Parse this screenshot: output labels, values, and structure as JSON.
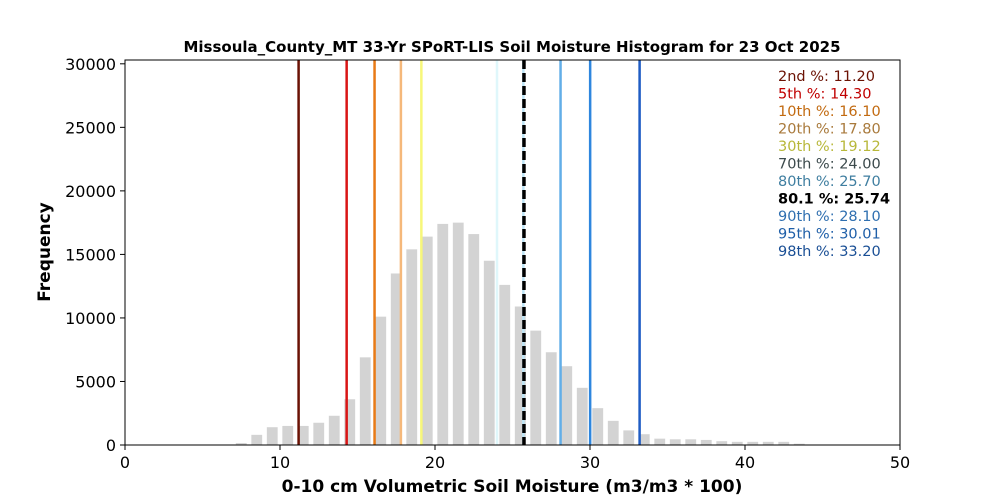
{
  "chart_data": {
    "type": "bar",
    "title": "Missoula_County_MT 33-Yr SPoRT-LIS Soil Moisture Histogram for 23 Oct 2025",
    "xlabel": "0-10 cm Volumetric Soil Moisture (m3/m3 * 100)",
    "ylabel": "Frequency",
    "xlim": [
      0,
      50
    ],
    "ylim": [
      0,
      30300
    ],
    "xticks": [
      0,
      10,
      20,
      30,
      40,
      50
    ],
    "yticks": [
      0,
      5000,
      10000,
      15000,
      20000,
      25000,
      30000
    ],
    "grid": false,
    "bin_centers": [
      7.5,
      8.5,
      9.5,
      10.5,
      11.5,
      12.5,
      13.5,
      14.5,
      15.5,
      16.5,
      17.5,
      18.5,
      19.5,
      20.5,
      21.5,
      22.5,
      23.5,
      24.5,
      25.5,
      26.5,
      27.5,
      28.5,
      29.5,
      30.5,
      31.5,
      32.5,
      33.5,
      34.5,
      35.5,
      36.5,
      37.5,
      38.5,
      39.5,
      40.5,
      41.5,
      42.5,
      43.5
    ],
    "bin_values": [
      150,
      800,
      1400,
      1500,
      1500,
      1750,
      2300,
      3600,
      6900,
      10100,
      13500,
      15400,
      16400,
      17400,
      17500,
      16600,
      14500,
      12600,
      10900,
      9000,
      7300,
      6200,
      4500,
      2900,
      1900,
      1150,
      850,
      500,
      450,
      450,
      400,
      300,
      250,
      250,
      250,
      250,
      100
    ],
    "bar_color": "#d3d3d3",
    "percentile_lines": [
      {
        "label": "2nd %: 11.20",
        "value": 11.2,
        "color": "#6b1204",
        "text_color": "#6b1204",
        "dashed": false
      },
      {
        "label": "5th %: 14.30",
        "value": 14.3,
        "color": "#d91515",
        "text_color": "#c00000",
        "dashed": false
      },
      {
        "label": "10th %: 16.10",
        "value": 16.1,
        "color": "#e87a16",
        "text_color": "#c26a10",
        "dashed": false
      },
      {
        "label": "20th %: 17.80",
        "value": 17.8,
        "color": "#f5b87a",
        "text_color": "#a97a3c",
        "dashed": false
      },
      {
        "label": "30th %: 19.12",
        "value": 19.12,
        "color": "#f7f77a",
        "text_color": "#b8b83a",
        "dashed": false
      },
      {
        "label": "70th %: 24.00",
        "value": 24.0,
        "color": "#dff7fb",
        "text_color": "#3c4a4c",
        "dashed": false
      },
      {
        "label": "80th %: 25.70",
        "value": 25.7,
        "color": "#bfe6f7",
        "text_color": "#3f7ea0",
        "dashed": false
      },
      {
        "label": "80.1 %: 25.74",
        "value": 25.74,
        "color": "#000000",
        "text_color": "#000000",
        "dashed": true,
        "bold": true
      },
      {
        "label": "90th %: 28.10",
        "value": 28.1,
        "color": "#62aee8",
        "text_color": "#2f6fb0",
        "dashed": false
      },
      {
        "label": "95th %: 30.01",
        "value": 30.01,
        "color": "#2e86de",
        "text_color": "#1f5fa8",
        "dashed": false
      },
      {
        "label": "98th %: 33.20",
        "value": 33.2,
        "color": "#1f5cc4",
        "text_color": "#1a4f95",
        "dashed": false
      }
    ]
  }
}
